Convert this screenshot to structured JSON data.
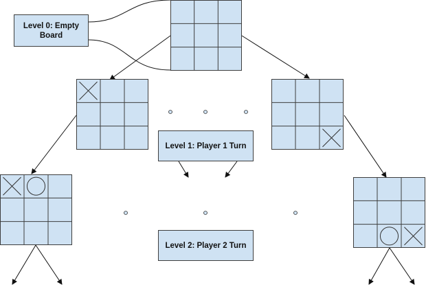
{
  "colors": {
    "board_fill": "#cfe2f3",
    "line": "#3d3d3d",
    "label_fill": "#cfe2f3"
  },
  "labels": {
    "level0": "Level 0: Empty Board",
    "level1": "Level 1: Player 1 Turn",
    "level2": "Level 2: Player 2 Turn"
  },
  "boards": {
    "root": [
      "",
      "",
      "",
      "",
      "",
      "",
      "",
      "",
      ""
    ],
    "level1_left": [
      "X",
      "",
      "",
      "",
      "",
      "",
      "",
      "",
      ""
    ],
    "level1_right": [
      "",
      "",
      "",
      "",
      "",
      "",
      "",
      "",
      "X"
    ],
    "level2_left": [
      "X",
      "O",
      "",
      "",
      "",
      "",
      "",
      "",
      ""
    ],
    "level2_right": [
      "",
      "",
      "",
      "",
      "",
      "",
      "",
      "O",
      "X"
    ]
  }
}
